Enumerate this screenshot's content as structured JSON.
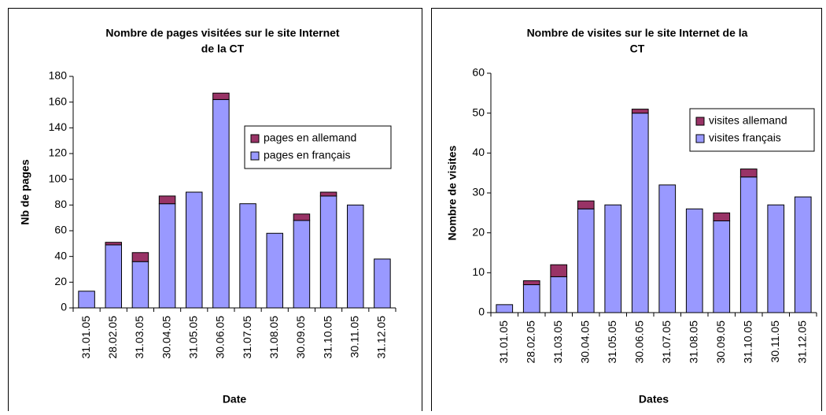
{
  "chart_data": [
    {
      "type": "bar",
      "stacked": true,
      "title": [
        "Nombre de pages visitées sur le site Internet",
        "de la CT"
      ],
      "x_label": "Date",
      "y_label": "Nb de pages",
      "categories": [
        "31.01.05",
        "28.02.05",
        "31.03.05",
        "30.04.05",
        "31.05.05",
        "30.06.05",
        "31.07.05",
        "31.08.05",
        "30.09.05",
        "31.10.05",
        "30.11.05",
        "31.12.05"
      ],
      "series": [
        {
          "name": "pages en français",
          "color": "#9999ff",
          "values": [
            13,
            49,
            36,
            81,
            90,
            162,
            81,
            58,
            68,
            87,
            80,
            38
          ]
        },
        {
          "name": "pages en allemand",
          "color": "#993366",
          "values": [
            0,
            2,
            7,
            6,
            0,
            5,
            0,
            0,
            5,
            3,
            0,
            0
          ]
        }
      ],
      "ylim": [
        0,
        180
      ],
      "yticks": [
        0,
        20,
        40,
        60,
        80,
        100,
        120,
        140,
        160,
        180
      ],
      "legend": "right"
    },
    {
      "type": "bar",
      "stacked": true,
      "title": [
        "Nombre de visites sur le site Internet de la",
        "CT"
      ],
      "x_label": "Dates",
      "y_label": "Nombre de visites",
      "categories": [
        "31.01.05",
        "28.02.05",
        "31.03.05",
        "30.04.05",
        "31.05.05",
        "30.06.05",
        "31.07.05",
        "31.08.05",
        "30.09.05",
        "31.10.05",
        "30.11.05",
        "31.12.05"
      ],
      "series": [
        {
          "name": "visites français",
          "color": "#9999ff",
          "values": [
            2,
            7,
            9,
            26,
            27,
            50,
            32,
            26,
            23,
            34,
            27,
            29
          ]
        },
        {
          "name": "visites allemand",
          "color": "#993366",
          "values": [
            0,
            1,
            3,
            2,
            0,
            1,
            0,
            0,
            2,
            2,
            0,
            0
          ]
        }
      ],
      "ylim": [
        0,
        60
      ],
      "yticks": [
        0,
        10,
        20,
        30,
        40,
        50,
        60
      ],
      "legend": "top-right"
    }
  ]
}
